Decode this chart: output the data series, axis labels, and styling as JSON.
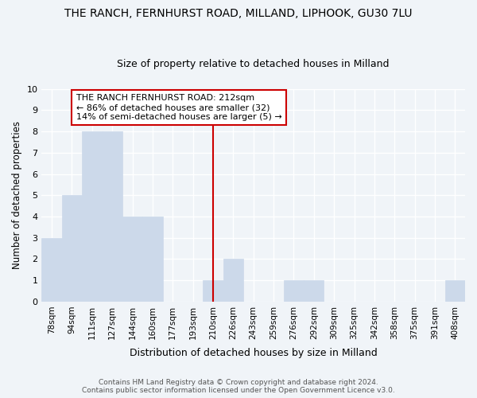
{
  "title": "THE RANCH, FERNHURST ROAD, MILLAND, LIPHOOK, GU30 7LU",
  "subtitle": "Size of property relative to detached houses in Milland",
  "xlabel": "Distribution of detached houses by size in Milland",
  "ylabel": "Number of detached properties",
  "categories": [
    "78sqm",
    "94sqm",
    "111sqm",
    "127sqm",
    "144sqm",
    "160sqm",
    "177sqm",
    "193sqm",
    "210sqm",
    "226sqm",
    "243sqm",
    "259sqm",
    "276sqm",
    "292sqm",
    "309sqm",
    "325sqm",
    "342sqm",
    "358sqm",
    "375sqm",
    "391sqm",
    "408sqm"
  ],
  "values": [
    3,
    5,
    8,
    8,
    4,
    4,
    0,
    0,
    1,
    2,
    0,
    0,
    1,
    1,
    0,
    0,
    0,
    0,
    0,
    0,
    1
  ],
  "bar_color": "#ccd9ea",
  "bar_edge_color": "#ccd9ea",
  "highlight_index": 8,
  "highlight_line_color": "#cc0000",
  "annotation_text": "THE RANCH FERNHURST ROAD: 212sqm\n← 86% of detached houses are smaller (32)\n14% of semi-detached houses are larger (5) →",
  "annotation_box_color": "#ffffff",
  "annotation_box_edge": "#cc0000",
  "ylim": [
    0,
    10
  ],
  "yticks": [
    0,
    1,
    2,
    3,
    4,
    5,
    6,
    7,
    8,
    9,
    10
  ],
  "footer1": "Contains HM Land Registry data © Crown copyright and database right 2024.",
  "footer2": "Contains public sector information licensed under the Open Government Licence v3.0.",
  "bg_color": "#f0f4f8",
  "plot_bg_color": "#f0f4f8",
  "title_fontsize": 10,
  "subtitle_fontsize": 9,
  "annotation_fontsize": 8,
  "grid_color": "#ffffff",
  "grid_linewidth": 1.0
}
